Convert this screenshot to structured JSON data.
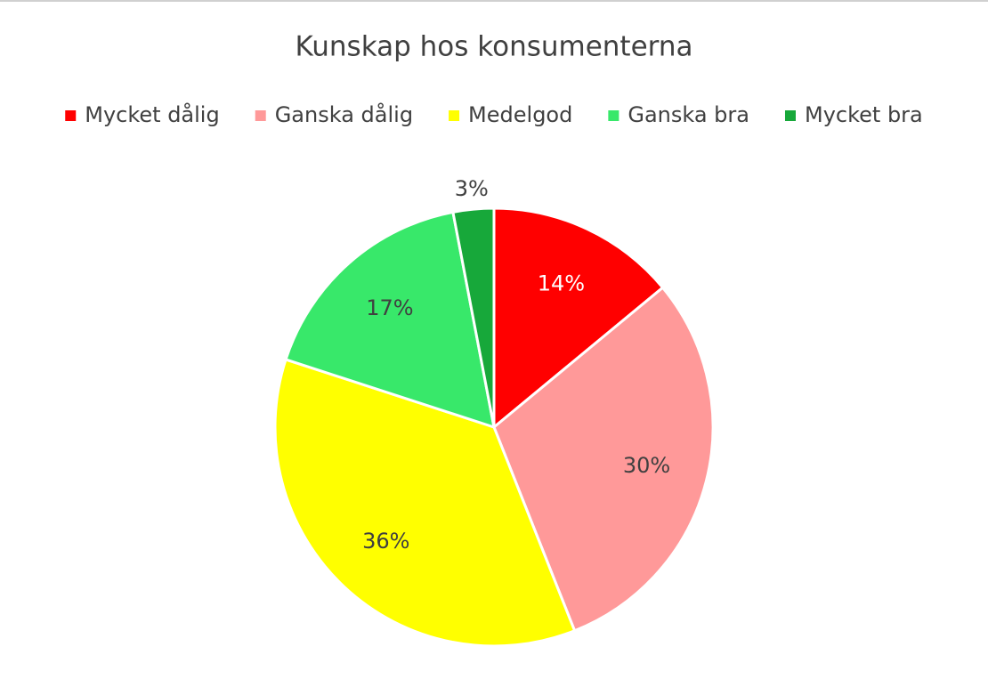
{
  "chart_data": {
    "type": "pie",
    "title": "Kunskap hos konsumenterna",
    "categories": [
      "Mycket dålig",
      "Ganska dålig",
      "Medelgod",
      "Ganska bra",
      "Mycket bra"
    ],
    "values": [
      14,
      30,
      36,
      17,
      3
    ],
    "value_labels": [
      "14%",
      "30%",
      "36%",
      "17%",
      "3%"
    ],
    "colors": [
      "#ff0000",
      "#ff9999",
      "#ffff00",
      "#38e86a",
      "#17a83a"
    ],
    "legend": "top"
  }
}
